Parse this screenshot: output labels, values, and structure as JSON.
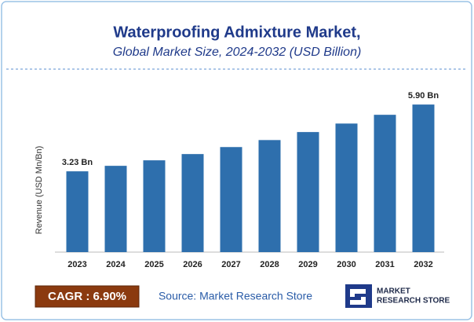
{
  "chart_data": {
    "type": "bar",
    "title": "Waterproofing Admixture Market,",
    "subtitle": "Global Market Size, 2024-2032 (USD Billion)",
    "y_label": "Revenue (USD Mn/Bn)",
    "categories": [
      "2023",
      "2024",
      "2025",
      "2026",
      "2027",
      "2028",
      "2029",
      "2030",
      "2031",
      "2032"
    ],
    "values": [
      3.23,
      3.45,
      3.67,
      3.92,
      4.2,
      4.48,
      4.8,
      5.14,
      5.49,
      5.9
    ],
    "value_labels": [
      "3.23 Bn",
      null,
      null,
      null,
      null,
      null,
      null,
      null,
      null,
      "5.90 Bn"
    ],
    "color": "#2e6fad",
    "ylim": [
      0,
      6.5
    ],
    "cagr": "CAGR : 6.90%",
    "source": "Source: Market Research Store",
    "brand": [
      "MARKET",
      "RESEARCH STORE"
    ]
  }
}
